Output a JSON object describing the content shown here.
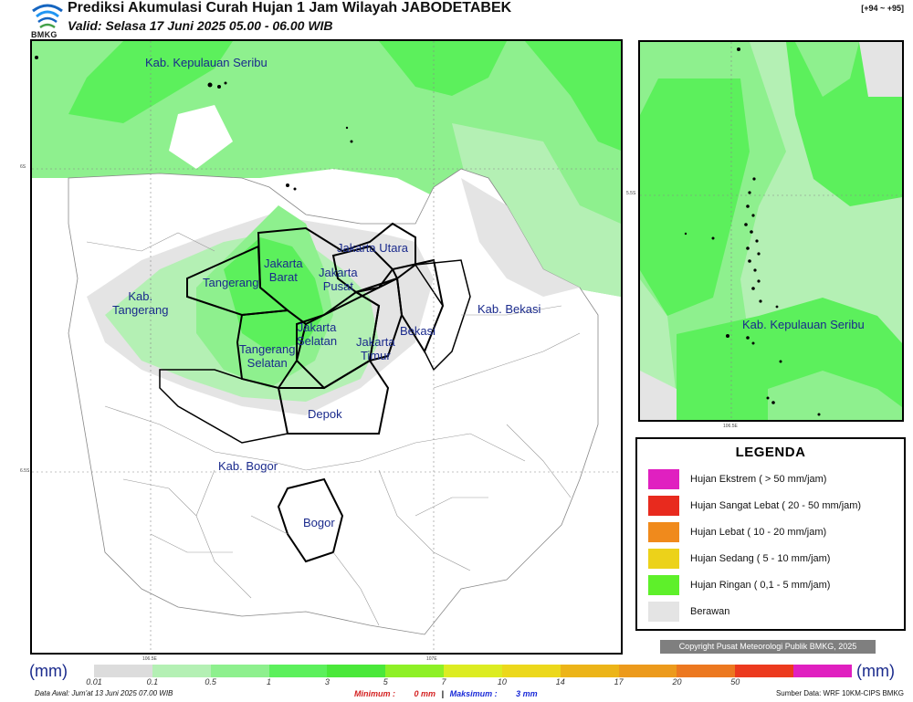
{
  "header": {
    "logo_text": "BMKG",
    "title": "Prediksi Akumulasi Curah Hujan 1 Jam Wilayah JABODETABEK",
    "subtitle": "Valid: Selasa 17 Juni 2025 05.00 - 06.00 WIB",
    "coords": "[+94 ~ +95]"
  },
  "map": {
    "region_labels": {
      "kep_seribu": "Kab. Kepulauan Seribu",
      "jakarta_utara": "Jakarta Utara",
      "jakarta_barat": "Jakarta\nBarat",
      "jakarta_pusat": "Jakarta\nPusat",
      "tangerang": "Tangerang",
      "kab_tangerang": "Kab.\nTangerang",
      "jakarta_selatan": "Jakarta\nSelatan",
      "jakarta_timur": "Jakarta\nTimur",
      "bekasi": "Bekasi",
      "kab_bekasi": "Kab. Bekasi",
      "tangerang_selatan": "Tangerang\nSelatan",
      "depok": "Depok",
      "kab_bogor": "Kab. Bogor",
      "bogor": "Bogor"
    },
    "ticks": {
      "lat_6s": "6S",
      "lat_65s": "6.5S",
      "lon_1065": "106.5E",
      "lon_107": "107E"
    }
  },
  "inset": {
    "label": "Kab. Kepulauan Seribu",
    "tick_lat": "5.5S",
    "tick_lon": "106.5E"
  },
  "legend": {
    "title": "LEGENDA",
    "items": [
      {
        "label": "Hujan Ekstrem ( > 50 mm/jam)",
        "color": "#e020c0"
      },
      {
        "label": "Hujan Sangat Lebat ( 20 - 50 mm/jam)",
        "color": "#e82a1e"
      },
      {
        "label": "Hujan Lebat ( 10 - 20 mm/jam)",
        "color": "#f08a1c"
      },
      {
        "label": "Hujan Sedang ( 5 - 10 mm/jam)",
        "color": "#ecd21a"
      },
      {
        "label": "Hujan Ringan ( 0,1 - 5 mm/jam)",
        "color": "#5ef02a"
      },
      {
        "label": "Berawan",
        "color": "#e4e4e4"
      }
    ]
  },
  "copyright": "Copyright Pusat Meteorologi Publik BMKG, 2025",
  "colorbar": {
    "unit_left": "(mm)",
    "unit_right": "(mm)",
    "colors": [
      "#dcdcdc",
      "#b4f0b4",
      "#8ef08e",
      "#5cf05c",
      "#4ae83a",
      "#8ef026",
      "#dcec22",
      "#ecd81c",
      "#ecb418",
      "#ec9a1c",
      "#ec7820",
      "#ec3a1e",
      "#e020c0"
    ],
    "ticks": [
      "0.01",
      "0.1",
      "0.5",
      "1",
      "3",
      "5",
      "7",
      "10",
      "14",
      "17",
      "20",
      "50"
    ]
  },
  "footer": {
    "data_awal": "Data Awal: Jum'at 13 Juni 2025 07.00 WIB",
    "min_label": "Minimum :",
    "min_value": "0 mm",
    "separator": "|",
    "max_label": "Maksimum :",
    "max_value": "3 mm",
    "source": "Sumber Data: WRF 10KM-CIPS BMKG"
  }
}
